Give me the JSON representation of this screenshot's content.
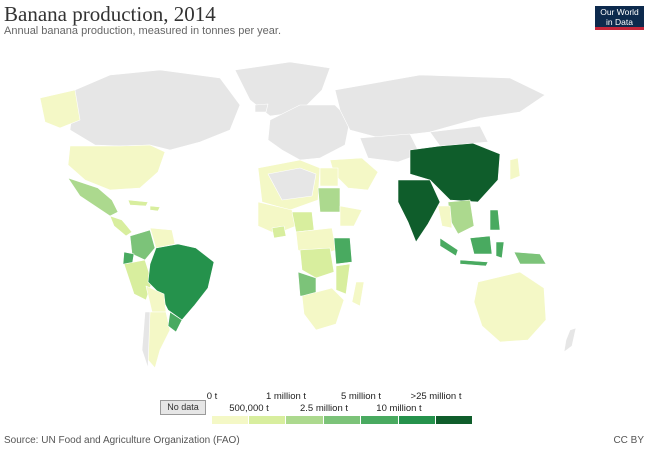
{
  "title": "Banana production, 2014",
  "subtitle": "Annual banana production, measured in tonnes per year.",
  "logo": {
    "line1": "Our World",
    "line2": "in Data"
  },
  "colors": {
    "no_data": "#e6e6e6",
    "bin0": "#f4f8c6",
    "bin1": "#d8ee9e",
    "bin2": "#acd98e",
    "bin3": "#7cc379",
    "bin4": "#49aa60",
    "bin5": "#25924c",
    "bin6": "#0f5d2b",
    "ocean": "#ffffff",
    "border": "#ffffff"
  },
  "legend": {
    "no_data_label": "No data",
    "top_labels": [
      "0 t",
      "1 million t",
      "5 million t",
      ">25 million t"
    ],
    "bottom_labels": [
      "500,000 t",
      "2.5 million t",
      "10 million t"
    ]
  },
  "source": "Source: UN Food and Agriculture Organization (FAO)",
  "license": "CC BY"
}
